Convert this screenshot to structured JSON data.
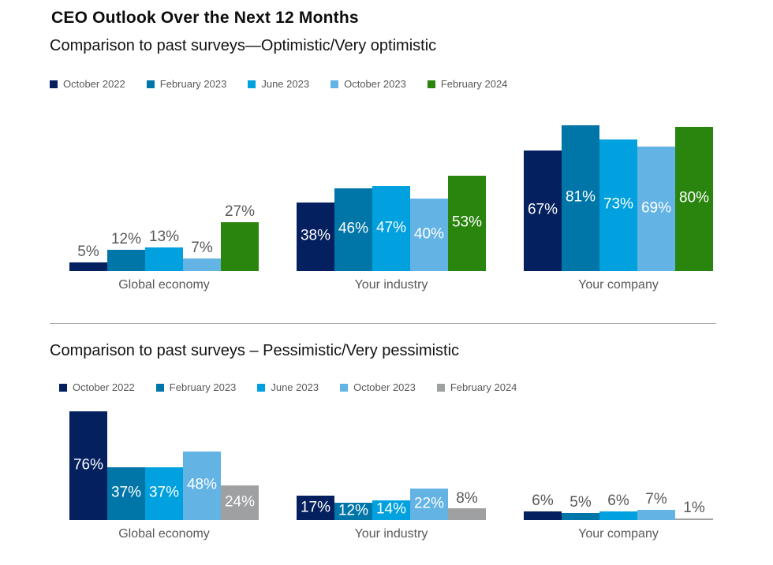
{
  "page": {
    "title": "CEO Outlook Over the Next 12 Months"
  },
  "colors": {
    "october_2022": "#05205e",
    "february_2023": "#0076a8",
    "june_2023": "#00a1de",
    "october_2023": "#63b3e4",
    "february_2024_optimistic": "#2a850e",
    "february_2024_pessimistic": "#9ea0a2",
    "data_label_inside": "#ffffff",
    "data_label_outside": "#595959",
    "axis_text": "#595959"
  },
  "chart_data": [
    {
      "type": "bar",
      "title": "Comparison to past surveys—Optimistic/Very optimistic",
      "unit": "%",
      "categories": [
        "Global economy",
        "Your industry",
        "Your company"
      ],
      "series": [
        {
          "name": "October 2022",
          "color": "#05205e",
          "values": [
            5,
            38,
            67
          ]
        },
        {
          "name": "February 2023",
          "color": "#0076a8",
          "values": [
            12,
            46,
            81
          ]
        },
        {
          "name": "June 2023",
          "color": "#00a1de",
          "values": [
            13,
            47,
            73
          ]
        },
        {
          "name": "October 2023",
          "color": "#63b3e4",
          "values": [
            7,
            40,
            69
          ]
        },
        {
          "name": "February 2024",
          "color": "#2a850e",
          "values": [
            27,
            53,
            80
          ]
        }
      ],
      "ylim": [
        0,
        100
      ],
      "grid": false,
      "legend_position": "top",
      "label_inside": [
        [
          false,
          true,
          true
        ],
        [
          false,
          true,
          true
        ],
        [
          false,
          true,
          true
        ],
        [
          false,
          true,
          true
        ],
        [
          false,
          true,
          true
        ]
      ]
    },
    {
      "type": "bar",
      "title": "Comparison to past surveys – Pessimistic/Very pessimistic",
      "unit": "%",
      "categories": [
        "Global economy",
        "Your industry",
        "Your company"
      ],
      "series": [
        {
          "name": "October 2022",
          "color": "#05205e",
          "values": [
            76,
            17,
            6
          ]
        },
        {
          "name": "February 2023",
          "color": "#0076a8",
          "values": [
            37,
            12,
            5
          ]
        },
        {
          "name": "June 2023",
          "color": "#00a1de",
          "values": [
            37,
            14,
            6
          ]
        },
        {
          "name": "October 2023",
          "color": "#63b3e4",
          "values": [
            48,
            22,
            7
          ]
        },
        {
          "name": "February 2024",
          "color": "#9ea0a2",
          "values": [
            24,
            8,
            1
          ]
        }
      ],
      "ylim": [
        0,
        100
      ],
      "grid": false,
      "legend_position": "top",
      "label_inside": [
        [
          true,
          true,
          false
        ],
        [
          true,
          true,
          false
        ],
        [
          true,
          true,
          false
        ],
        [
          true,
          true,
          false
        ],
        [
          true,
          false,
          false
        ]
      ]
    }
  ]
}
